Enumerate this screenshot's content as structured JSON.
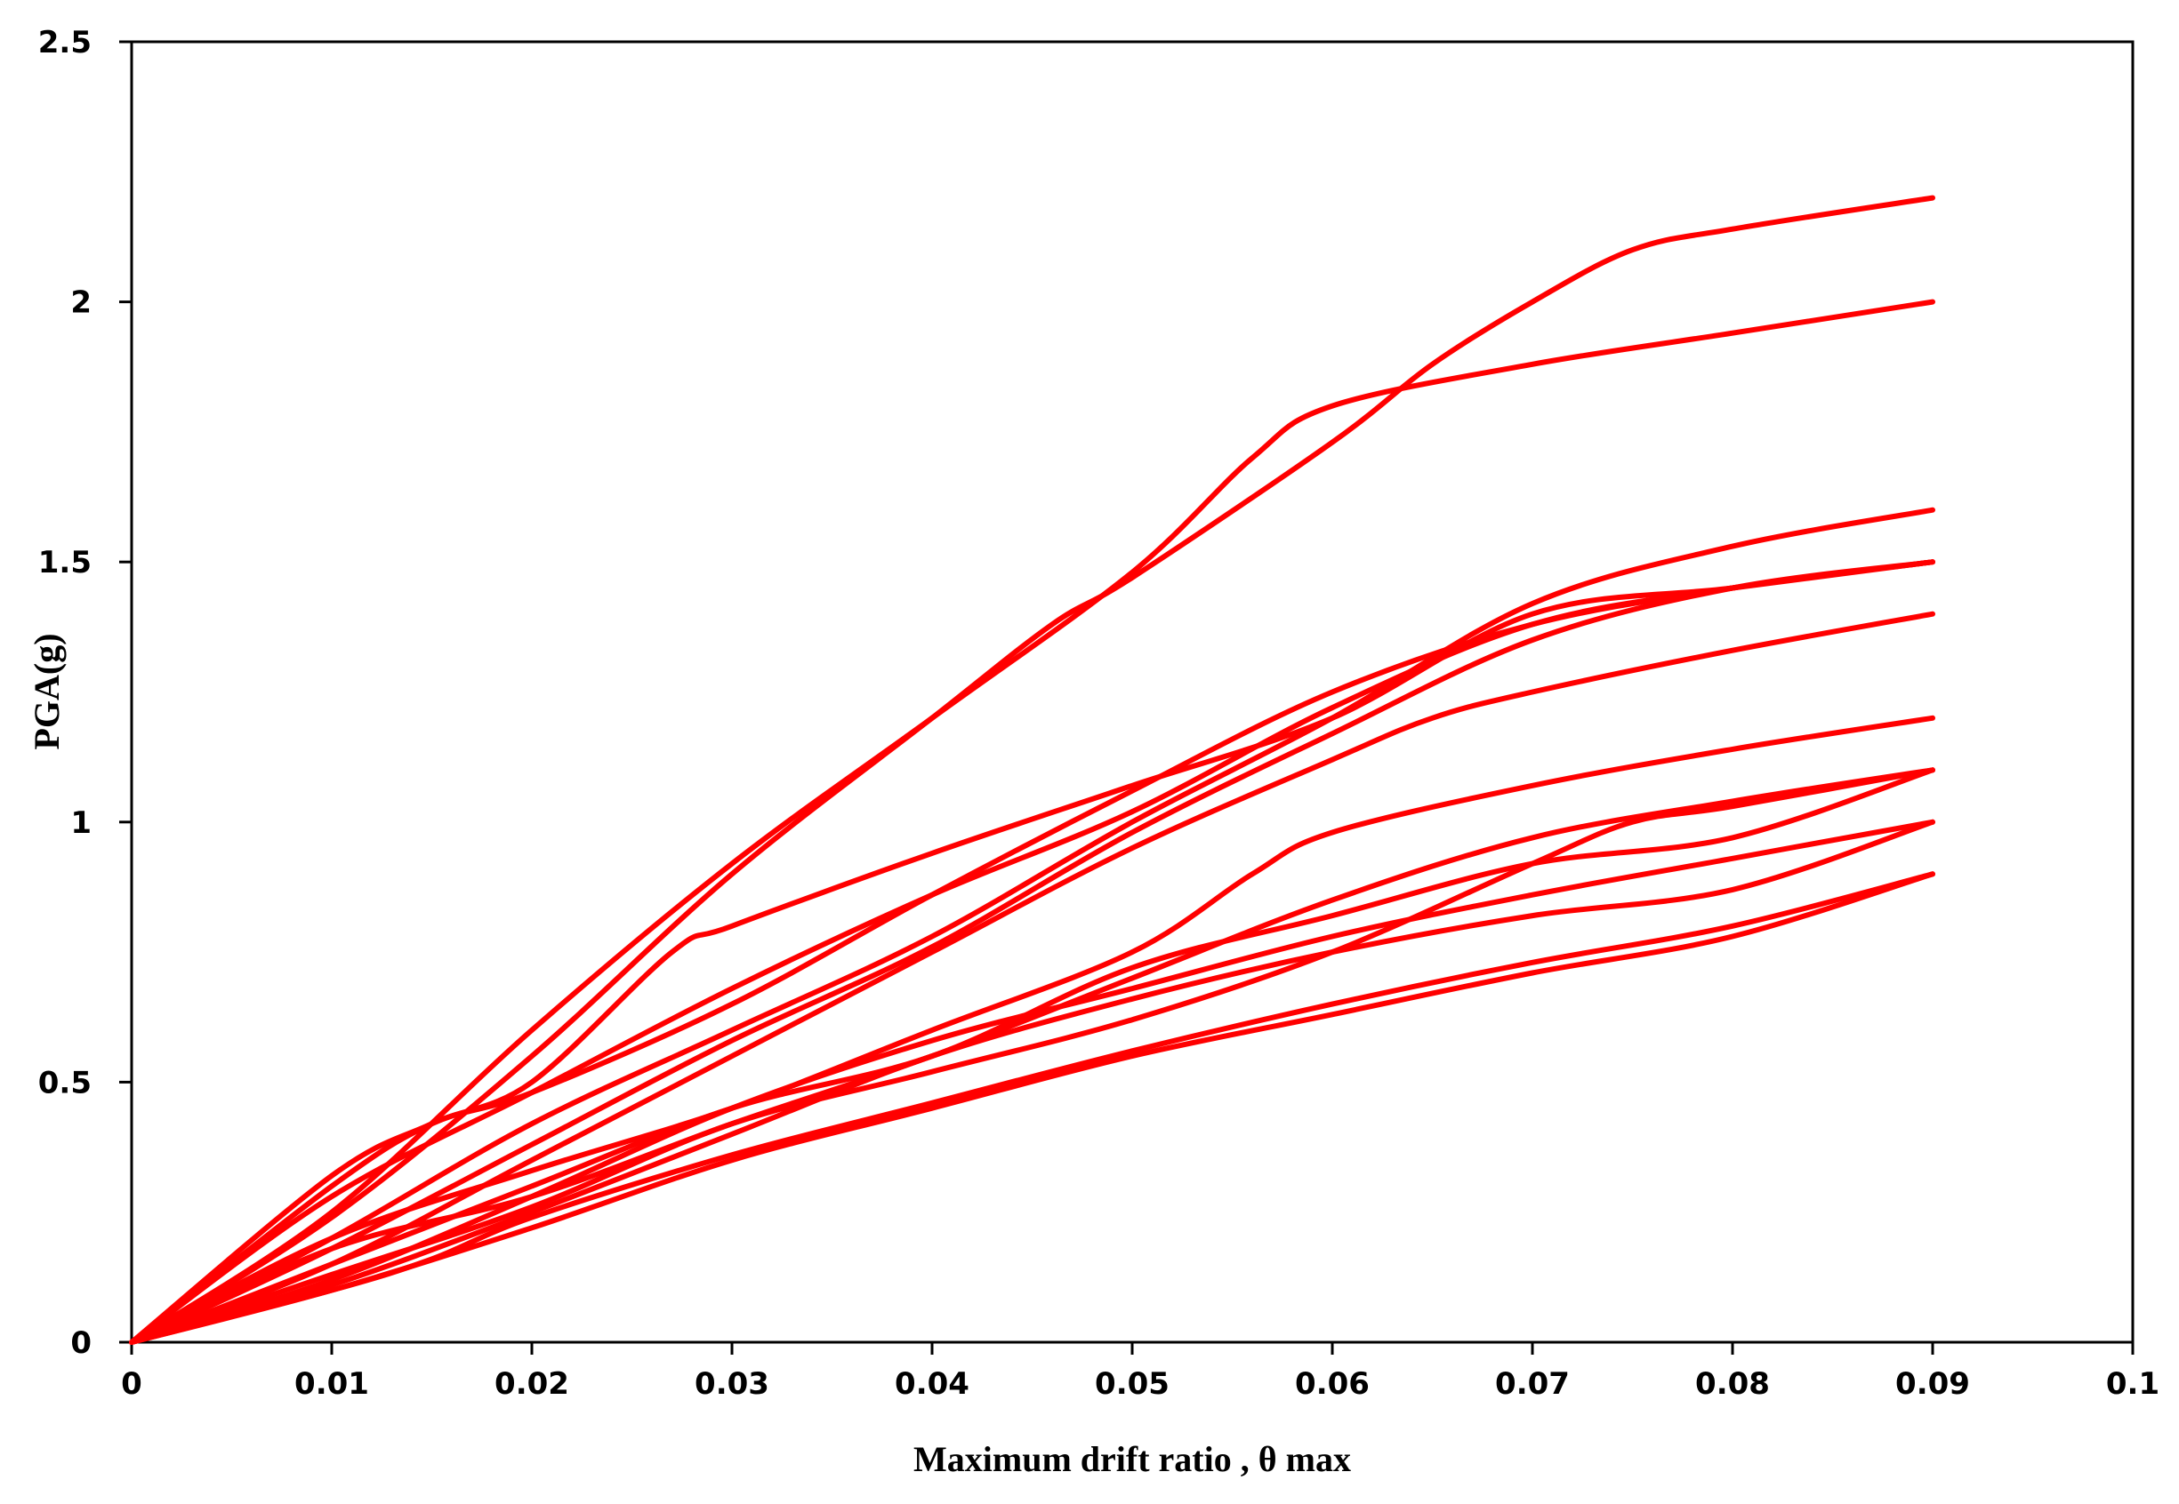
{
  "chart_data": {
    "type": "line",
    "title": "",
    "xlabel": "Maximum drift ratio , θ max",
    "ylabel": "PGA(g)",
    "xlim": [
      0,
      0.1
    ],
    "ylim": [
      0,
      2.5
    ],
    "grid": false,
    "legend": "none",
    "color": "#ff0000",
    "x_ticks": [
      "0",
      "0.01",
      "0.02",
      "0.03",
      "0.04",
      "0.05",
      "0.06",
      "0.07",
      "0.08",
      "0.09",
      "0.1"
    ],
    "y_ticks": [
      "0",
      "0.5",
      "1",
      "1.5",
      "2",
      "2.5"
    ],
    "series": [
      {
        "points": [
          [
            0,
            0
          ],
          [
            0.01,
            0.25
          ],
          [
            0.02,
            0.6
          ],
          [
            0.03,
            0.92
          ],
          [
            0.04,
            1.2
          ],
          [
            0.05,
            1.48
          ],
          [
            0.056,
            1.7
          ],
          [
            0.06,
            1.8
          ],
          [
            0.07,
            1.88
          ],
          [
            0.08,
            1.94
          ],
          [
            0.09,
            2.0
          ]
        ]
      },
      {
        "points": [
          [
            0,
            0
          ],
          [
            0.01,
            0.24
          ],
          [
            0.02,
            0.55
          ],
          [
            0.03,
            0.9
          ],
          [
            0.04,
            1.2
          ],
          [
            0.046,
            1.38
          ],
          [
            0.05,
            1.47
          ],
          [
            0.06,
            1.73
          ],
          [
            0.065,
            1.88
          ],
          [
            0.07,
            2.0
          ],
          [
            0.075,
            2.1
          ],
          [
            0.08,
            2.14
          ],
          [
            0.09,
            2.2
          ]
        ]
      },
      {
        "points": [
          [
            0,
            0
          ],
          [
            0.01,
            0.2
          ],
          [
            0.02,
            0.42
          ],
          [
            0.03,
            0.6
          ],
          [
            0.04,
            0.78
          ],
          [
            0.05,
            1.0
          ],
          [
            0.06,
            1.2
          ],
          [
            0.07,
            1.42
          ],
          [
            0.08,
            1.53
          ],
          [
            0.09,
            1.6
          ]
        ]
      },
      {
        "points": [
          [
            0,
            0
          ],
          [
            0.01,
            0.28
          ],
          [
            0.02,
            0.48
          ],
          [
            0.03,
            0.68
          ],
          [
            0.04,
            0.86
          ],
          [
            0.05,
            1.02
          ],
          [
            0.06,
            1.22
          ],
          [
            0.07,
            1.38
          ],
          [
            0.08,
            1.45
          ],
          [
            0.09,
            1.5
          ]
        ]
      },
      {
        "points": [
          [
            0,
            0
          ],
          [
            0.01,
            0.18
          ],
          [
            0.02,
            0.38
          ],
          [
            0.03,
            0.58
          ],
          [
            0.04,
            0.76
          ],
          [
            0.05,
            0.98
          ],
          [
            0.06,
            1.17
          ],
          [
            0.07,
            1.35
          ],
          [
            0.08,
            1.45
          ],
          [
            0.09,
            1.5
          ]
        ]
      },
      {
        "points": [
          [
            0,
            0
          ],
          [
            0.01,
            0.15
          ],
          [
            0.02,
            0.35
          ],
          [
            0.03,
            0.55
          ],
          [
            0.04,
            0.75
          ],
          [
            0.05,
            0.95
          ],
          [
            0.06,
            1.12
          ],
          [
            0.065,
            1.2
          ],
          [
            0.07,
            1.25
          ],
          [
            0.08,
            1.33
          ],
          [
            0.09,
            1.4
          ]
        ]
      },
      {
        "points": [
          [
            0,
            0
          ],
          [
            0.01,
            0.3
          ],
          [
            0.015,
            0.42
          ],
          [
            0.02,
            0.48
          ],
          [
            0.03,
            0.65
          ],
          [
            0.04,
            0.86
          ],
          [
            0.05,
            1.06
          ],
          [
            0.06,
            1.25
          ],
          [
            0.07,
            1.38
          ],
          [
            0.08,
            1.45
          ],
          [
            0.09,
            1.5
          ]
        ]
      },
      {
        "points": [
          [
            0,
            0
          ],
          [
            0.01,
            0.32
          ],
          [
            0.015,
            0.42
          ],
          [
            0.02,
            0.5
          ],
          [
            0.027,
            0.75
          ],
          [
            0.03,
            0.8
          ],
          [
            0.04,
            0.94
          ],
          [
            0.05,
            1.07
          ],
          [
            0.06,
            1.2
          ],
          [
            0.07,
            1.4
          ],
          [
            0.08,
            1.45
          ],
          [
            0.09,
            1.5
          ]
        ]
      },
      {
        "points": [
          [
            0,
            0
          ],
          [
            0.01,
            0.2
          ],
          [
            0.02,
            0.33
          ],
          [
            0.03,
            0.45
          ],
          [
            0.04,
            0.6
          ],
          [
            0.05,
            0.75
          ],
          [
            0.056,
            0.9
          ],
          [
            0.06,
            0.98
          ],
          [
            0.07,
            1.07
          ],
          [
            0.08,
            1.14
          ],
          [
            0.09,
            1.2
          ]
        ]
      },
      {
        "points": [
          [
            0,
            0
          ],
          [
            0.01,
            0.18
          ],
          [
            0.02,
            0.28
          ],
          [
            0.03,
            0.42
          ],
          [
            0.04,
            0.55
          ],
          [
            0.05,
            0.7
          ],
          [
            0.06,
            0.85
          ],
          [
            0.07,
            0.97
          ],
          [
            0.08,
            1.04
          ],
          [
            0.09,
            1.1
          ]
        ]
      },
      {
        "points": [
          [
            0,
            0
          ],
          [
            0.01,
            0.15
          ],
          [
            0.02,
            0.3
          ],
          [
            0.03,
            0.45
          ],
          [
            0.04,
            0.55
          ],
          [
            0.05,
            0.72
          ],
          [
            0.06,
            0.82
          ],
          [
            0.07,
            0.92
          ],
          [
            0.08,
            0.97
          ],
          [
            0.09,
            1.1
          ]
        ]
      },
      {
        "points": [
          [
            0,
            0
          ],
          [
            0.01,
            0.13
          ],
          [
            0.02,
            0.26
          ],
          [
            0.03,
            0.42
          ],
          [
            0.04,
            0.52
          ],
          [
            0.05,
            0.62
          ],
          [
            0.06,
            0.75
          ],
          [
            0.07,
            0.92
          ],
          [
            0.075,
            1.0
          ],
          [
            0.08,
            1.03
          ],
          [
            0.09,
            1.1
          ]
        ]
      },
      {
        "points": [
          [
            0,
            0
          ],
          [
            0.01,
            0.12
          ],
          [
            0.02,
            0.28
          ],
          [
            0.03,
            0.45
          ],
          [
            0.04,
            0.58
          ],
          [
            0.05,
            0.68
          ],
          [
            0.06,
            0.78
          ],
          [
            0.07,
            0.86
          ],
          [
            0.08,
            0.93
          ],
          [
            0.09,
            1.0
          ]
        ]
      },
      {
        "points": [
          [
            0,
            0
          ],
          [
            0.01,
            0.11
          ],
          [
            0.02,
            0.25
          ],
          [
            0.03,
            0.4
          ],
          [
            0.04,
            0.55
          ],
          [
            0.05,
            0.66
          ],
          [
            0.06,
            0.75
          ],
          [
            0.07,
            0.82
          ],
          [
            0.08,
            0.87
          ],
          [
            0.09,
            1.0
          ]
        ]
      },
      {
        "points": [
          [
            0,
            0
          ],
          [
            0.01,
            0.1
          ],
          [
            0.02,
            0.22
          ],
          [
            0.03,
            0.35
          ],
          [
            0.04,
            0.45
          ],
          [
            0.05,
            0.55
          ],
          [
            0.06,
            0.63
          ],
          [
            0.07,
            0.71
          ],
          [
            0.08,
            0.78
          ],
          [
            0.09,
            0.9
          ]
        ]
      },
      {
        "points": [
          [
            0,
            0
          ],
          [
            0.01,
            0.1
          ],
          [
            0.015,
            0.16
          ],
          [
            0.02,
            0.24
          ],
          [
            0.03,
            0.36
          ],
          [
            0.04,
            0.46
          ],
          [
            0.05,
            0.56
          ],
          [
            0.06,
            0.65
          ],
          [
            0.07,
            0.73
          ],
          [
            0.08,
            0.8
          ],
          [
            0.09,
            0.9
          ]
        ]
      }
    ]
  }
}
